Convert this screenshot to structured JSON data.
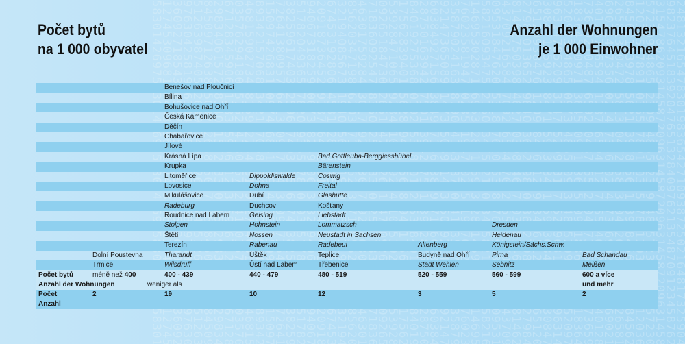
{
  "title_cz": [
    "Počet bytů",
    "na 1 000 obyvatel"
  ],
  "title_de": [
    "Anzahl der Wohnungen",
    "je 1 000 Einwohner"
  ],
  "rows": [
    {
      "c2": "Benešov nad Ploučnicí"
    },
    {
      "c2": "Bílina"
    },
    {
      "c2": "Bohušovice nad Ohří"
    },
    {
      "c2": "Česká Kamenice"
    },
    {
      "c2": "Děčín"
    },
    {
      "c2": "Chabařovice"
    },
    {
      "c2": "Jílové"
    },
    {
      "c2": "Krásná Lípa",
      "c4": "Bad Gottleuba-Berggiesshübel"
    },
    {
      "c2": "Krupka",
      "c4": "Bärenstein"
    },
    {
      "c2": "Litoměřice",
      "c3": "Dippoldiswalde",
      "c4": "Coswig"
    },
    {
      "c2": "Lovosice",
      "c3": "Dohna",
      "c4": "Freital"
    },
    {
      "c2": "Mikulášovice",
      "c3": "Dubí",
      "c4": "Glashütte"
    },
    {
      "c2": "Radeburg",
      "c3": "Duchcov",
      "c4": "Košťany"
    },
    {
      "c2": "Roudnice nad Labem",
      "c3": "Geising",
      "c4": "Liebstadt"
    },
    {
      "c2": "Stolpen",
      "c3": "Hohnstein",
      "c4": "Lommatzsch",
      "c6": "Dresden"
    },
    {
      "c2": "Štětí",
      "c3": "Nossen",
      "c4": "Neustadt in Sachsen",
      "c6": "Heidenau"
    },
    {
      "c2": "Terezín",
      "c3": "Rabenau",
      "c4": "Radebeul",
      "c5": "Altenberg",
      "c6": "Königstein/Sächs.Schw."
    },
    {
      "c1": "Dolní Poustevna",
      "c2": "Tharandt",
      "c3": "Úštěk",
      "c4": "Teplice",
      "c5": "Budyně nad Ohří",
      "c6": "Pirna",
      "c7": "Bad Schandau"
    },
    {
      "c1": "Trmice",
      "c2": "Wilsdruff",
      "c3": "Ústí nad Labem",
      "c4": "Třebenice",
      "c5": "Stadt Wehlen",
      "c6": "Sebnitz",
      "c7": "Meißen"
    }
  ],
  "header": {
    "label_cz": "Počet bytů",
    "label_de": "Anzahl der Wohnungen",
    "range_0_a": "méně než",
    "range_0_b": "400",
    "range_0_c": "weniger als",
    "range_1": "400 - 439",
    "range_2": "440 - 479",
    "range_3": "480 - 519",
    "range_4": "520 - 559",
    "range_5": "560 - 599",
    "range_6a": "600 a více",
    "range_6b": "und mehr"
  },
  "count_row": {
    "label_cz": "Počet",
    "label_de": "Anzahl",
    "v0": "2",
    "v1": "19",
    "v2": "10",
    "v3": "12",
    "v4": "3",
    "v5": "5",
    "v6": "2"
  }
}
